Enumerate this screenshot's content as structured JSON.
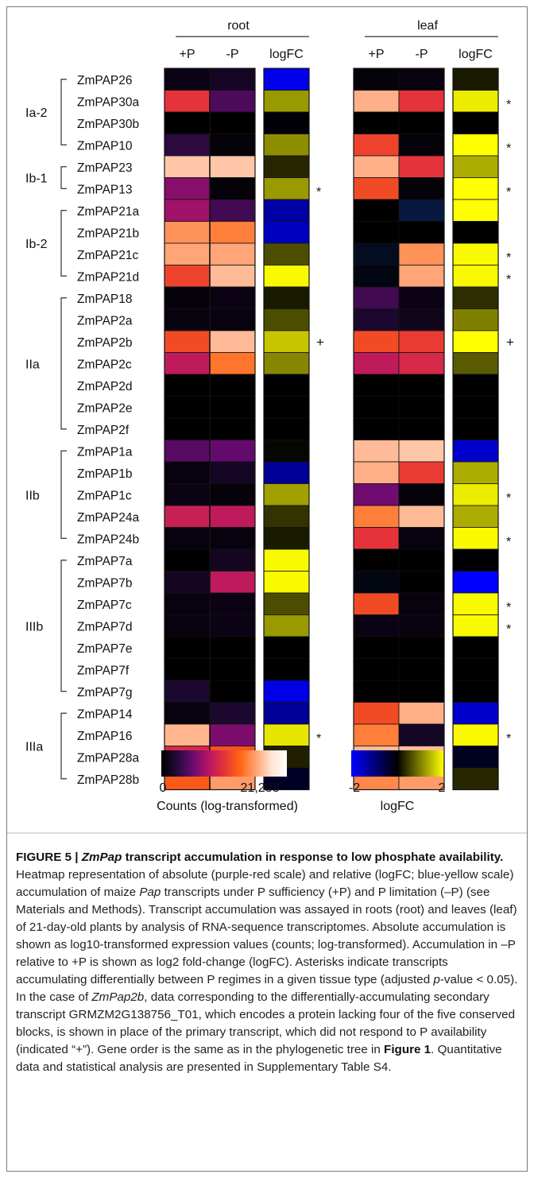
{
  "chart_data": {
    "type": "heatmap",
    "tissues": [
      "root",
      "leaf"
    ],
    "columns": [
      "+P",
      "-P",
      "logFC"
    ],
    "groups": [
      {
        "label": "Ia-2",
        "rows": [
          "ZmPAP26",
          "ZmPAP30a",
          "ZmPAP30b",
          "ZmPAP10"
        ]
      },
      {
        "label": "Ib-1",
        "rows": [
          "ZmPAP23",
          "ZmPAP13"
        ]
      },
      {
        "label": "Ib-2",
        "rows": [
          "ZmPAP21a",
          "ZmPAP21b",
          "ZmPAP21c",
          "ZmPAP21d"
        ]
      },
      {
        "label": "IIa",
        "rows": [
          "ZmPAP18",
          "ZmPAP2a",
          "ZmPAP2b",
          "ZmPAP2c",
          "ZmPAP2d",
          "ZmPAP2e",
          "ZmPAP2f"
        ]
      },
      {
        "label": "IIb",
        "rows": [
          "ZmPAP1a",
          "ZmPAP1b",
          "ZmPAP1c",
          "ZmPAP24a",
          "ZmPAP24b"
        ]
      },
      {
        "label": "IIIb",
        "rows": [
          "ZmPAP7a",
          "ZmPAP7b",
          "ZmPAP7c",
          "ZmPAP7d",
          "ZmPAP7e",
          "ZmPAP7f",
          "ZmPAP7g"
        ]
      },
      {
        "label": "IIIa",
        "rows": [
          "ZmPAP14",
          "ZmPAP16",
          "ZmPAP28a",
          "ZmPAP28b"
        ]
      }
    ],
    "root_counts_plus": [
      0.04,
      0.5,
      0.0,
      0.14,
      0.82,
      0.3,
      0.34,
      0.72,
      0.76,
      0.54,
      0.02,
      0.03,
      0.56,
      0.4,
      0.0,
      0.0,
      0.0,
      0.22,
      0.03,
      0.04,
      0.42,
      0.03,
      0.0,
      0.07,
      0.03,
      0.03,
      0.0,
      0.0,
      0.1,
      0.03,
      0.79,
      0.46,
      0.6
    ],
    "root_counts_minus": [
      0.08,
      0.2,
      0.0,
      0.02,
      0.82,
      0.02,
      0.18,
      0.68,
      0.76,
      0.8,
      0.04,
      0.03,
      0.8,
      0.66,
      0.0,
      0.0,
      0.0,
      0.24,
      0.08,
      0.02,
      0.4,
      0.03,
      0.07,
      0.4,
      0.04,
      0.04,
      0.0,
      0.0,
      0.0,
      0.1,
      0.28,
      0.58,
      0.74
    ],
    "root_logfc": [
      -1.85,
      1.2,
      -0.05,
      1.1,
      0.3,
      1.2,
      -1.3,
      -1.5,
      0.6,
      1.95,
      0.2,
      0.6,
      1.55,
      1.05,
      0.0,
      0.0,
      0.0,
      0.05,
      -1.2,
      1.25,
      0.4,
      0.2,
      1.95,
      1.95,
      0.6,
      1.2,
      0.0,
      0.0,
      -1.8,
      -1.2,
      1.8,
      0.25,
      -0.3
    ],
    "leaf_counts_plus": [
      0.02,
      0.78,
      0.0,
      0.54,
      0.78,
      0.56,
      0.0,
      0.0,
      -0.1,
      -0.05,
      0.18,
      0.1,
      0.56,
      0.4,
      0.0,
      0.0,
      0.0,
      0.8,
      0.78,
      0.26,
      0.68,
      0.5,
      0.0,
      -0.05,
      0.56,
      0.04,
      0.0,
      0.0,
      0.0,
      0.56,
      0.68,
      0.8,
      0.7
    ],
    "leaf_counts_minus": [
      0.03,
      0.5,
      0.0,
      0.02,
      0.5,
      0.02,
      -0.2,
      0.0,
      0.72,
      0.76,
      0.04,
      0.06,
      0.52,
      0.46,
      0.0,
      0.0,
      0.0,
      0.82,
      0.52,
      0.02,
      0.8,
      0.03,
      0.0,
      0.0,
      0.03,
      0.03,
      0.0,
      0.0,
      0.0,
      0.78,
      0.08,
      0.8,
      0.74
    ],
    "leaf_logfc": [
      0.2,
      1.85,
      0.0,
      2.0,
      1.35,
      2.0,
      2.0,
      0.0,
      1.95,
      1.95,
      0.35,
      1.0,
      2.0,
      0.7,
      0.0,
      0.0,
      0.0,
      -1.6,
      1.35,
      1.85,
      1.35,
      1.95,
      0.0,
      -2.0,
      1.95,
      1.95,
      0.0,
      0.0,
      0.0,
      -1.6,
      1.95,
      -0.25,
      0.3
    ],
    "root_marks": [
      "",
      "",
      "",
      "",
      "",
      "*",
      "",
      "",
      "",
      "",
      "",
      "",
      "+",
      "",
      "",
      "",
      "",
      "",
      "",
      "",
      "",
      "",
      "",
      "",
      "",
      "",
      "",
      "",
      "",
      "",
      "*",
      "",
      ""
    ],
    "leaf_marks": [
      "",
      "*",
      "",
      "*",
      "",
      "*",
      "",
      "",
      "*",
      "*",
      "",
      "",
      "+",
      "",
      "",
      "",
      "",
      "",
      "",
      "*",
      "",
      "*",
      "",
      "",
      "*",
      "*",
      "",
      "",
      "",
      "",
      "*",
      "",
      ""
    ],
    "counts_scale": {
      "min": "0",
      "max": "21,233",
      "label": "Counts (log-transformed)",
      "colors": [
        "#000000",
        "#230a3a",
        "#6a0a70",
        "#b51564",
        "#e5333b",
        "#ff6410",
        "#ffa070",
        "#ffe4d2",
        "#ffffff"
      ]
    },
    "logfc_scale": {
      "min": "-2",
      "max": "2",
      "label": "logFC",
      "colors": [
        "#0000ff",
        "#000080",
        "#000000",
        "#808000",
        "#ffff00"
      ]
    }
  },
  "caption": {
    "figure_label": "FIGURE 5 | ",
    "title_gene": "ZmPap",
    "title_rest": " transcript accumulation in response to low phosphate availability.",
    "t1": " Heatmap representation of absolute (purple-red scale) and relative (logFC; blue-yellow scale) accumulation of maize ",
    "t1_gene": "Pap",
    "t2": " transcripts under P sufficiency (+P) and P limitation (–P) (see Materials and Methods). Transcript accumulation was assayed in roots (root) and leaves (leaf) of 21-day-old plants by analysis of RNA-sequence transcriptomes. Absolute accumulation is shown as log10-transformed expression values (counts; log-transformed). Accumulation in –P relative to +P is shown as log2 fold-change (logFC). Asterisks indicate transcripts accumulating differentially between P regimes in a given tissue type (adjusted ",
    "t2_p": "p",
    "t3": "-value < 0.05). In the case of ",
    "t3_gene": "ZmPap2b",
    "t4": ", data corresponding to the differentially-accumulating secondary transcript GRMZM2G138756_T01, which encodes a protein lacking four of the five conserved blocks, is shown in place of the primary transcript, which did not respond to P availability (indicated “+”). Gene order is the same as in the phylogenetic tree in ",
    "t4_fig": "Figure 1",
    "t5": ". Quantitative data and statistical analysis are presented in Supplementary Table S4."
  }
}
